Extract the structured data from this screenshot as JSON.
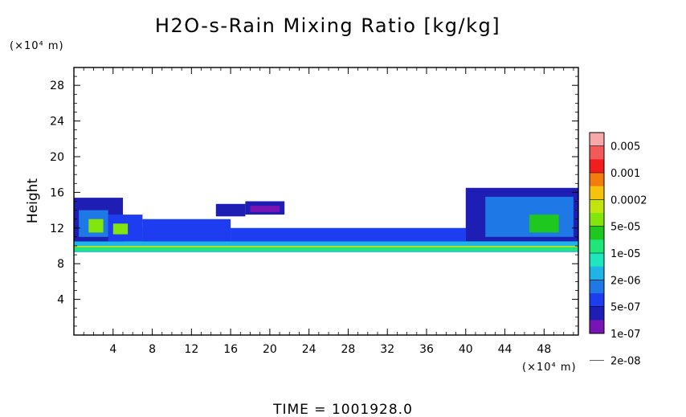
{
  "chart_data": {
    "type": "heatmap",
    "title": "H2O-s-Rain Mixing Ratio [kg/kg]",
    "ylabel": "Height",
    "y_unit": "(×10⁴ m)",
    "x_unit": "(×10⁴ m)",
    "xlim": [
      0,
      51.5
    ],
    "ylim": [
      0,
      30
    ],
    "x_ticks": [
      4,
      8,
      12,
      16,
      20,
      24,
      28,
      32,
      36,
      40,
      44,
      48
    ],
    "y_ticks": [
      4,
      8,
      12,
      16,
      20,
      24,
      28
    ],
    "time_label": "TIME  =  1001928.0",
    "colorbar": {
      "labels": [
        "0.005",
        "0.001",
        "0.0002",
        "5e-05",
        "1e-05",
        "2e-06",
        "5e-07",
        "1e-07",
        "2e-08"
      ],
      "colors_top_to_bottom": [
        "#f7a8a8",
        "#f25a5a",
        "#f21e1e",
        "#f27d0d",
        "#f5c20d",
        "#c2e60d",
        "#82e60d",
        "#1ec81e",
        "#1ee678",
        "#1ee6be",
        "#1eb4e6",
        "#1e78e6",
        "#1e3cf0",
        "#1e1eb4",
        "#7814b4"
      ]
    },
    "regions": [
      {
        "level": 4,
        "x": [
          0,
          51.5
        ],
        "y": [
          9.3,
          12.0
        ]
      },
      {
        "level": 6,
        "x": [
          0,
          51.5
        ],
        "y": [
          9.4,
          9.8
        ]
      },
      {
        "level": 9,
        "x": [
          0,
          51.5
        ],
        "y": [
          9.85,
          10.0
        ]
      },
      {
        "level": 4,
        "x": [
          0,
          51.5
        ],
        "y": [
          10.5,
          10.8
        ]
      },
      {
        "level": 1,
        "x": [
          0,
          5
        ],
        "y": [
          10.5,
          15.4
        ]
      },
      {
        "level": 3,
        "x": [
          0.5,
          3.5
        ],
        "y": [
          11.0,
          14.0
        ]
      },
      {
        "level": 8,
        "x": [
          1.5,
          3.0
        ],
        "y": [
          11.5,
          13.0
        ]
      },
      {
        "level": 2,
        "x": [
          3.5,
          7
        ],
        "y": [
          10.5,
          13.5
        ]
      },
      {
        "level": 8,
        "x": [
          4.0,
          5.5
        ],
        "y": [
          11.3,
          12.5
        ]
      },
      {
        "level": 2,
        "x": [
          7,
          16
        ],
        "y": [
          10.5,
          13.0
        ]
      },
      {
        "level": 1,
        "x": [
          14.5,
          17.5
        ],
        "y": [
          13.3,
          14.7
        ]
      },
      {
        "level": 1,
        "x": [
          17.5,
          21.5
        ],
        "y": [
          13.5,
          15.0
        ]
      },
      {
        "level": 0,
        "x": [
          18.0,
          21.0
        ],
        "y": [
          13.8,
          14.5
        ]
      },
      {
        "level": 2,
        "x": [
          16,
          40
        ],
        "y": [
          10.5,
          12.0
        ]
      },
      {
        "level": 1,
        "x": [
          40,
          51.5
        ],
        "y": [
          10.5,
          16.5
        ]
      },
      {
        "level": 3,
        "x": [
          42,
          51
        ],
        "y": [
          11.0,
          15.5
        ]
      },
      {
        "level": 7,
        "x": [
          46.5,
          49.5
        ],
        "y": [
          11.5,
          13.5
        ]
      }
    ]
  }
}
